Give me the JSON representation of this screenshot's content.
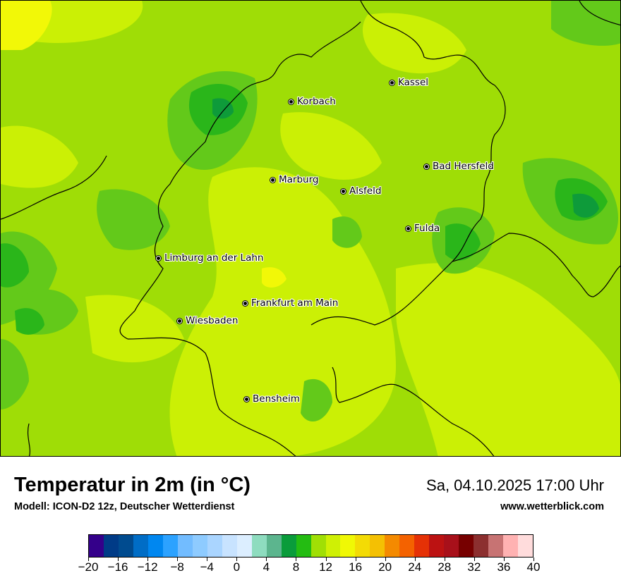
{
  "map": {
    "cities": [
      {
        "name": "Kassel"
      },
      {
        "name": "Korbach"
      },
      {
        "name": "Bad Hersfeld"
      },
      {
        "name": "Marburg"
      },
      {
        "name": "Alsfeld"
      },
      {
        "name": "Fulda"
      },
      {
        "name": "Limburg an der Lahn"
      },
      {
        "name": "Frankfurt am Main"
      },
      {
        "name": "Wiesbaden"
      },
      {
        "name": "Bensheim"
      }
    ],
    "field_colors": {
      "warm_yellow": "#f2f807",
      "light_yellow_green": "#cbf005",
      "mid_green": "#9fdd06",
      "green": "#63c91a",
      "dark_green": "#2ab61a",
      "deep_green": "#0e9b3a"
    }
  },
  "footer": {
    "title": "Temperatur in 2m (in °C)",
    "model": "Modell: ICON-D2 12z, Deutscher Wetterdienst",
    "datetime": "Sa, 04.10.2025 17:00 Uhr",
    "website": "www.wetterblick.com"
  },
  "colorbar": {
    "min": -20,
    "max": 40,
    "colors": [
      "#34008a",
      "#003b87",
      "#004b8f",
      "#006dc6",
      "#0087f0",
      "#2ca2ff",
      "#72bcff",
      "#8ecbff",
      "#aad5ff",
      "#c8e3ff",
      "#dceeff",
      "#8edcbf",
      "#5cb58e",
      "#0a9c3b",
      "#24bc12",
      "#a0df05",
      "#cff005",
      "#f0f805",
      "#f3db05",
      "#f4c003",
      "#f48a00",
      "#f46200",
      "#e53106",
      "#bc1212",
      "#a8101a",
      "#770000",
      "#8c2f2f",
      "#c77373",
      "#ffb2b2",
      "#ffdcdc"
    ],
    "tick_labels": [
      "−20",
      "−16",
      "−12",
      "−8",
      "−4",
      "0",
      "4",
      "8",
      "12",
      "16",
      "20",
      "24",
      "28",
      "32",
      "36",
      "40"
    ]
  }
}
